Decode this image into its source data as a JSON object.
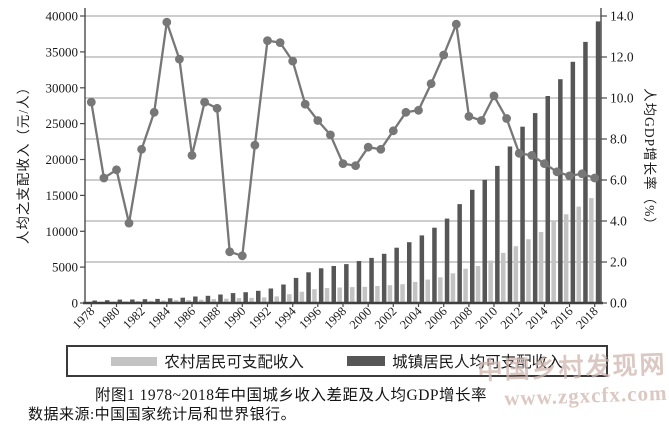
{
  "chart_data": {
    "type": "combo_bar_line",
    "title": "附图1  1978~2018年中国城乡收入差距及人均GDP增长率",
    "x_years": [
      1978,
      1979,
      1980,
      1981,
      1982,
      1983,
      1984,
      1985,
      1986,
      1987,
      1988,
      1989,
      1990,
      1991,
      1992,
      1993,
      1994,
      1995,
      1996,
      1997,
      1998,
      1999,
      2000,
      2001,
      2002,
      2003,
      2004,
      2005,
      2006,
      2007,
      2008,
      2009,
      2010,
      2011,
      2012,
      2013,
      2014,
      2015,
      2016,
      2017,
      2018
    ],
    "x_tick_labels": [
      "1978",
      "1980",
      "1982",
      "1984",
      "1986",
      "1988",
      "1990",
      "1992",
      "1994",
      "1996",
      "1998",
      "2000",
      "2002",
      "2004",
      "2006",
      "2008",
      "2010",
      "2012",
      "2014",
      "2016",
      "2018"
    ],
    "left_axis": {
      "label": "人均之支配收入（元/人）",
      "min": 0,
      "max": 40000,
      "tick_step": 5000,
      "tick_labels": [
        "40000",
        "35000",
        "30000",
        "25000",
        "20000",
        "15000",
        "10000",
        "5000",
        "0"
      ]
    },
    "right_axis": {
      "label": "人均GDP增长率（%）",
      "min": 0,
      "max": 14,
      "tick_step": 2,
      "tick_labels": [
        "14.0",
        "12.0",
        "10.0",
        "8.0",
        "6.0",
        "4.0",
        "2.0",
        "0.0"
      ]
    },
    "grid": "horizontal gridlines at every 2.0 of right axis",
    "series": [
      {
        "name": "农村居民可支配收入",
        "type": "bar",
        "axis": "left",
        "color": "#c3c3c3",
        "values": [
          134,
          160,
          191,
          223,
          270,
          310,
          355,
          398,
          424,
          463,
          545,
          602,
          686,
          709,
          784,
          922,
          1221,
          1578,
          1926,
          2090,
          2162,
          2210,
          2253,
          2366,
          2476,
          2622,
          2936,
          3255,
          3587,
          4140,
          4761,
          5153,
          5919,
          6977,
          7917,
          8896,
          9892,
          11422,
          12363,
          13432,
          14617
        ]
      },
      {
        "name": "城镇居民人均可支配收入",
        "type": "bar",
        "axis": "left",
        "color": "#565656",
        "values": [
          343,
          387,
          478,
          492,
          535,
          565,
          651,
          739,
          900,
          1002,
          1181,
          1374,
          1510,
          1701,
          2027,
          2577,
          3496,
          4283,
          4839,
          5160,
          5425,
          5854,
          6280,
          6860,
          7703,
          8472,
          9422,
          10493,
          11760,
          13786,
          15781,
          17175,
          19109,
          21810,
          24565,
          26467,
          28844,
          31195,
          33616,
          36396,
          39251
        ]
      },
      {
        "name": "人均GDP增长率",
        "type": "line",
        "axis": "right",
        "color": "#777777",
        "values": [
          9.8,
          6.1,
          6.5,
          3.9,
          7.5,
          9.3,
          13.7,
          11.9,
          7.2,
          9.8,
          9.5,
          2.5,
          2.3,
          7.7,
          12.8,
          12.7,
          11.8,
          9.7,
          8.9,
          8.2,
          6.8,
          6.7,
          7.6,
          7.5,
          8.4,
          9.3,
          9.4,
          10.7,
          12.1,
          13.6,
          9.1,
          8.9,
          10.1,
          9.0,
          7.3,
          7.2,
          6.8,
          6.4,
          6.2,
          6.3,
          6.1
        ]
      }
    ]
  },
  "legend": {
    "items": [
      {
        "label": "农村居民可支配收入",
        "color": "#c3c3c3"
      },
      {
        "label": "城镇居民人均可支配收入",
        "color": "#565656"
      }
    ]
  },
  "caption": "附图1  1978~2018年中国城乡收入差距及人均GDP增长率",
  "source": "数据来源:中国国家统计局和世界银行。",
  "watermark": {
    "line1": "中国乡村发现网",
    "line2": "www.zgxcfx.com"
  },
  "colors": {
    "gridline": "#9b9b9b",
    "axis": "#4a4a4a",
    "line_series": "#777777",
    "rural_bar": "#c3c3c3",
    "urban_bar": "#565656"
  }
}
